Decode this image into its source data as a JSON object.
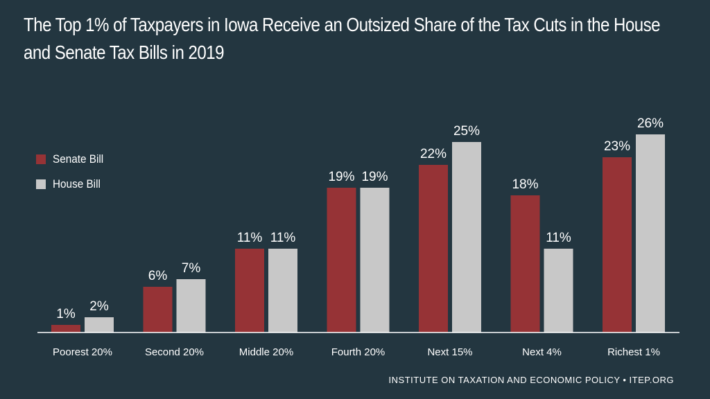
{
  "title": "The Top 1% of Taxpayers in Iowa Receive an Outsized Share of the Tax Cuts in the House and Senate Tax Bills in 2019",
  "footer": "INSTITUTE ON TAXATION AND ECONOMIC POLICY • ITEP.ORG",
  "colors": {
    "background": "#233640",
    "senate": "#963336",
    "house": "#c8c8c8",
    "text": "#ffffff"
  },
  "legend": {
    "senate": "Senate Bill",
    "house": "House Bill"
  },
  "chart_data": {
    "type": "bar",
    "title": "The Top 1% of Taxpayers in Iowa Receive an Outsized Share of the Tax Cuts in the House and Senate Tax Bills in 2019",
    "categories": [
      "Poorest 20%",
      "Second 20%",
      "Middle 20%",
      "Fourth 20%",
      "Next 15%",
      "Next 4%",
      "Richest 1%"
    ],
    "series": [
      {
        "name": "Senate Bill",
        "values": [
          1,
          6,
          11,
          19,
          22,
          18,
          23
        ],
        "labels": [
          "1%",
          "6%",
          "11%",
          "19%",
          "22%",
          "18%",
          "23%"
        ]
      },
      {
        "name": "House Bill",
        "values": [
          2,
          7,
          11,
          19,
          25,
          11,
          26
        ],
        "labels": [
          "2%",
          "7%",
          "11%",
          "19%",
          "25%",
          "11%",
          "26%"
        ]
      }
    ],
    "ylim": [
      0,
      26
    ],
    "xlabel": "",
    "ylabel": "",
    "grid": false,
    "legend_position": "left"
  }
}
